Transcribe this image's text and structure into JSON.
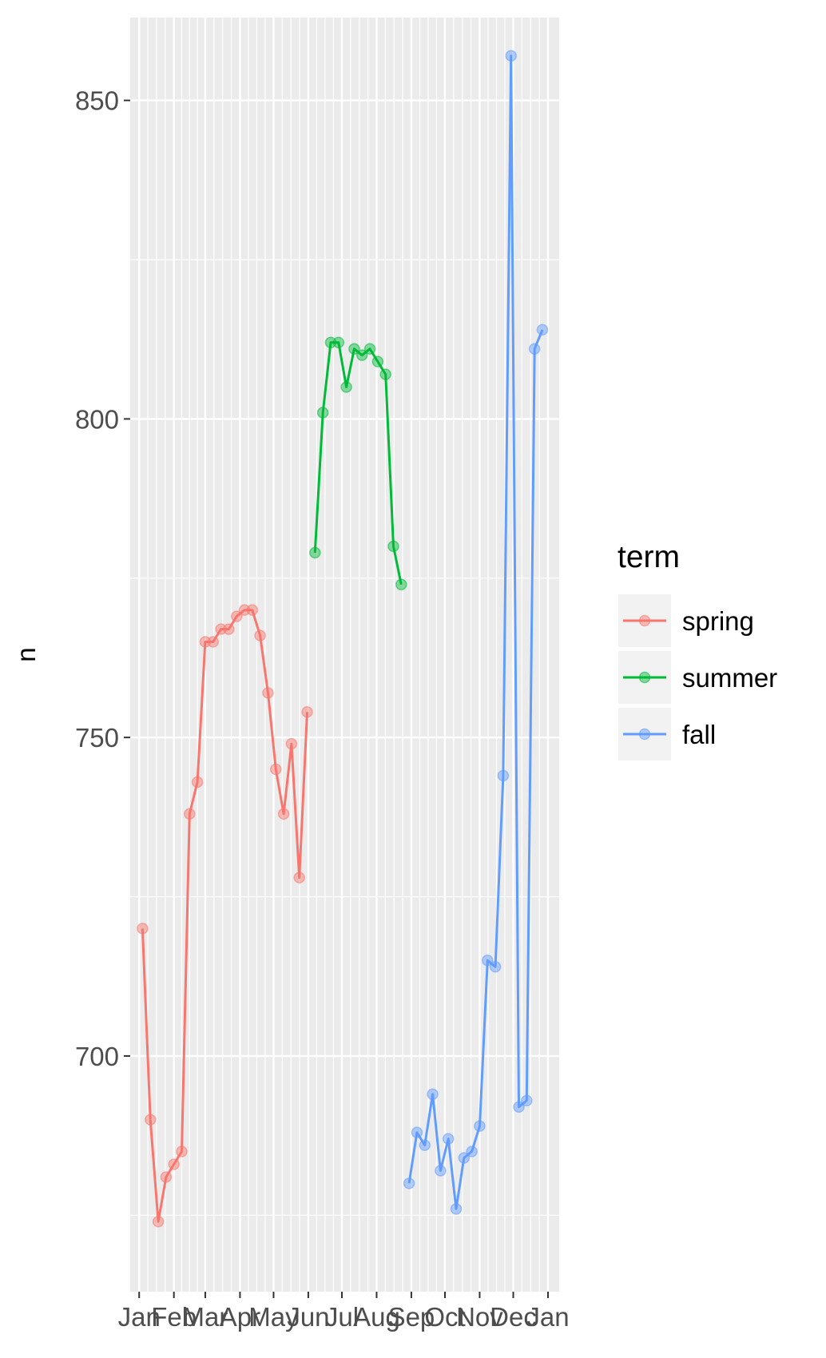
{
  "chart_data": {
    "type": "line",
    "ylabel": "n",
    "xlabel": "",
    "title": "",
    "ylim": [
      663,
      863
    ],
    "y_ticks": [
      700,
      750,
      800,
      850
    ],
    "x_ticks": [
      "Jan",
      "Feb",
      "Mar",
      "Apr",
      "May",
      "Jun",
      "Jul",
      "Aug",
      "Sep",
      "Oct",
      "Nov",
      "Dec",
      "Jan"
    ],
    "x_tick_dates": [
      "2015-01-01",
      "2015-02-01",
      "2015-03-01",
      "2015-04-01",
      "2015-05-01",
      "2015-06-01",
      "2015-07-01",
      "2015-08-01",
      "2015-09-01",
      "2015-10-01",
      "2015-11-01",
      "2015-12-01",
      "2016-01-01"
    ],
    "xlim": [
      "2014-12-24",
      "2016-01-11"
    ],
    "grid": true,
    "legend": {
      "title": "term",
      "placement": "right"
    },
    "series": [
      {
        "name": "spring",
        "color": "#F8766D",
        "points": [
          {
            "x": "2015-01-04",
            "y": 720
          },
          {
            "x": "2015-01-11",
            "y": 690
          },
          {
            "x": "2015-01-18",
            "y": 674
          },
          {
            "x": "2015-01-25",
            "y": 681
          },
          {
            "x": "2015-02-01",
            "y": 683
          },
          {
            "x": "2015-02-08",
            "y": 685
          },
          {
            "x": "2015-02-15",
            "y": 738
          },
          {
            "x": "2015-02-22",
            "y": 743
          },
          {
            "x": "2015-03-01",
            "y": 765
          },
          {
            "x": "2015-03-08",
            "y": 765
          },
          {
            "x": "2015-03-15",
            "y": 767
          },
          {
            "x": "2015-03-22",
            "y": 767
          },
          {
            "x": "2015-03-29",
            "y": 769
          },
          {
            "x": "2015-04-05",
            "y": 770
          },
          {
            "x": "2015-04-12",
            "y": 770
          },
          {
            "x": "2015-04-19",
            "y": 766
          },
          {
            "x": "2015-04-26",
            "y": 757
          },
          {
            "x": "2015-05-03",
            "y": 745
          },
          {
            "x": "2015-05-10",
            "y": 738
          },
          {
            "x": "2015-05-17",
            "y": 749
          },
          {
            "x": "2015-05-24",
            "y": 728
          },
          {
            "x": "2015-05-31",
            "y": 754
          }
        ]
      },
      {
        "name": "summer",
        "color": "#00BA38",
        "points": [
          {
            "x": "2015-06-07",
            "y": 779
          },
          {
            "x": "2015-06-14",
            "y": 801
          },
          {
            "x": "2015-06-21",
            "y": 812
          },
          {
            "x": "2015-06-28",
            "y": 812
          },
          {
            "x": "2015-07-05",
            "y": 805
          },
          {
            "x": "2015-07-12",
            "y": 811
          },
          {
            "x": "2015-07-19",
            "y": 810
          },
          {
            "x": "2015-07-26",
            "y": 811
          },
          {
            "x": "2015-08-02",
            "y": 809
          },
          {
            "x": "2015-08-09",
            "y": 807
          },
          {
            "x": "2015-08-16",
            "y": 780
          },
          {
            "x": "2015-08-23",
            "y": 774
          }
        ]
      },
      {
        "name": "fall",
        "color": "#619CFF",
        "points": [
          {
            "x": "2015-08-30",
            "y": 680
          },
          {
            "x": "2015-09-06",
            "y": 688
          },
          {
            "x": "2015-09-13",
            "y": 686
          },
          {
            "x": "2015-09-20",
            "y": 694
          },
          {
            "x": "2015-09-27",
            "y": 682
          },
          {
            "x": "2015-10-04",
            "y": 687
          },
          {
            "x": "2015-10-11",
            "y": 676
          },
          {
            "x": "2015-10-18",
            "y": 684
          },
          {
            "x": "2015-10-25",
            "y": 685
          },
          {
            "x": "2015-11-01",
            "y": 689
          },
          {
            "x": "2015-11-08",
            "y": 715
          },
          {
            "x": "2015-11-15",
            "y": 714
          },
          {
            "x": "2015-11-22",
            "y": 744
          },
          {
            "x": "2015-11-29",
            "y": 857
          },
          {
            "x": "2015-12-06",
            "y": 692
          },
          {
            "x": "2015-12-13",
            "y": 693
          },
          {
            "x": "2015-12-20",
            "y": 811
          },
          {
            "x": "2015-12-27",
            "y": 814
          }
        ]
      }
    ]
  }
}
